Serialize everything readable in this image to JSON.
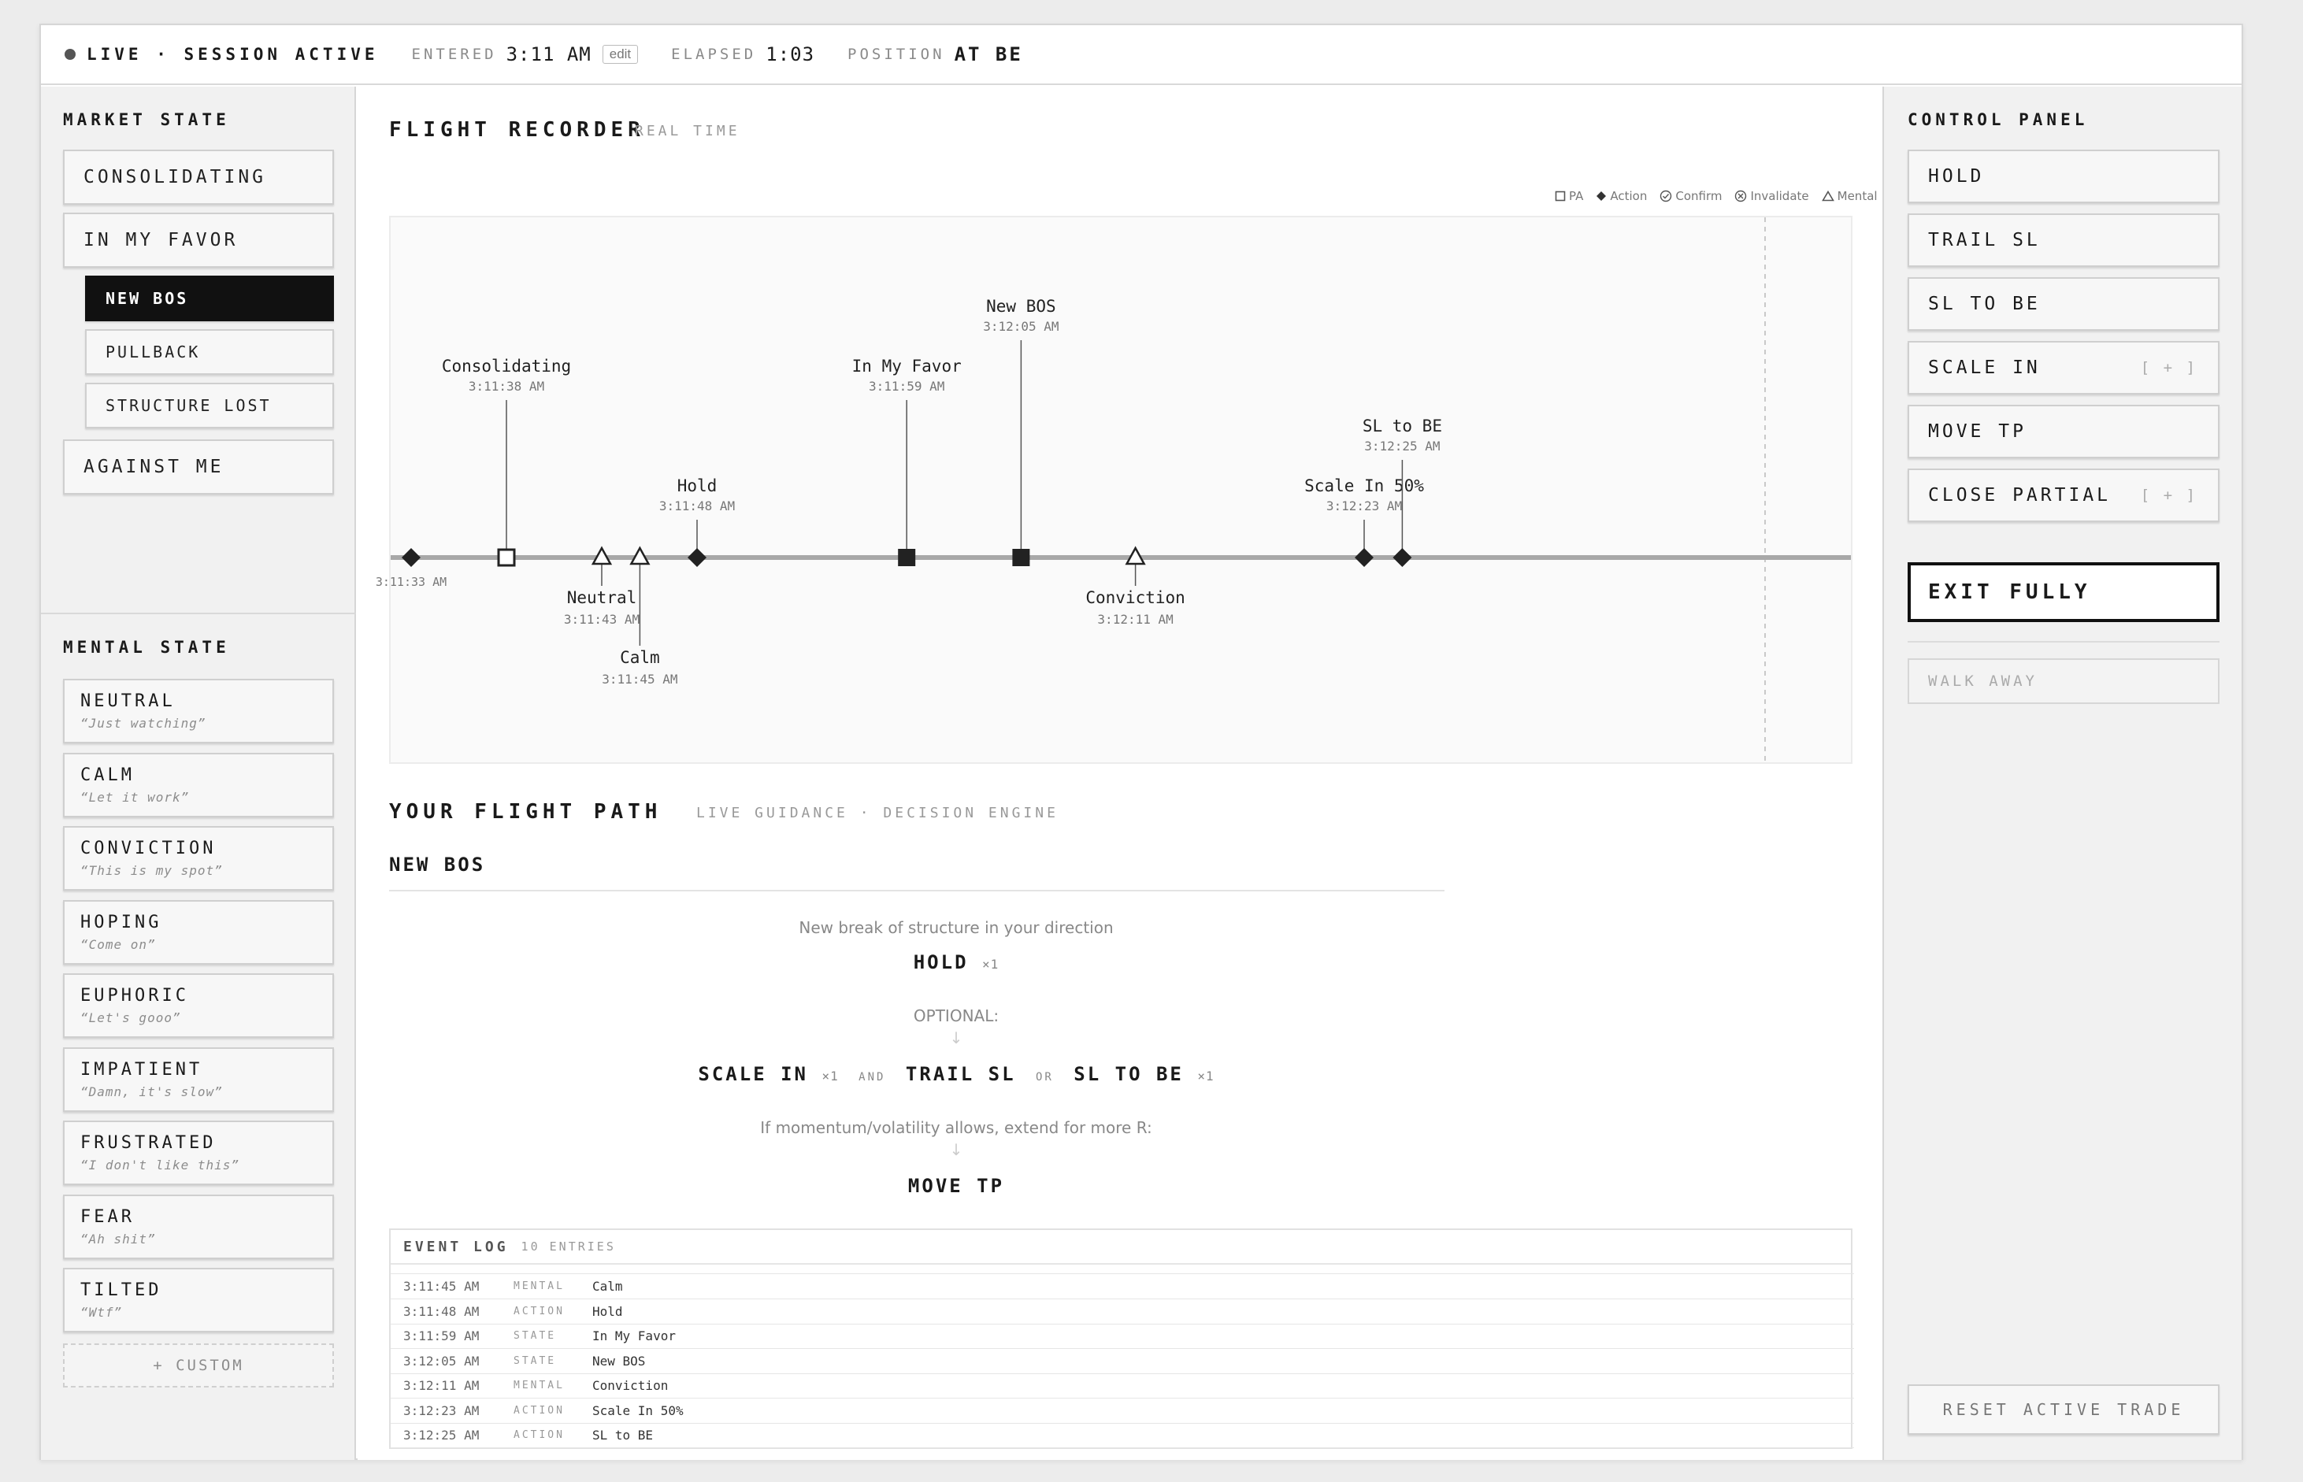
{
  "topbar": {
    "status": "LIVE · SESSION ACTIVE",
    "entered_label": "ENTERED",
    "entered_value": "3:11 AM",
    "edit_label": "edit",
    "elapsed_label": "ELAPSED",
    "elapsed_value": "1:03",
    "position_label": "POSITION",
    "position_value": "AT BE"
  },
  "market_state": {
    "title": "MARKET STATE",
    "items": [
      "CONSOLIDATING",
      "IN MY FAVOR",
      "AGAINST ME"
    ],
    "sub_items": [
      "NEW BOS",
      "PULLBACK",
      "STRUCTURE LOST"
    ],
    "active": "NEW BOS"
  },
  "mental_state": {
    "title": "MENTAL STATE",
    "items": [
      {
        "label": "NEUTRAL",
        "quote": "“Just watching”"
      },
      {
        "label": "CALM",
        "quote": "“Let it work”"
      },
      {
        "label": "CONVICTION",
        "quote": "“This is my spot”"
      },
      {
        "label": "HOPING",
        "quote": "“Come on”"
      },
      {
        "label": "EUPHORIC",
        "quote": "“Let's gooo”"
      },
      {
        "label": "IMPATIENT",
        "quote": "“Damn, it's slow”"
      },
      {
        "label": "FRUSTRATED",
        "quote": "“I don't like this”"
      },
      {
        "label": "FEAR",
        "quote": "“Ah shit”"
      },
      {
        "label": "TILTED",
        "quote": "“Wtf”"
      }
    ],
    "custom_label": "+ CUSTOM"
  },
  "control_panel": {
    "title": "CONTROL PANEL",
    "buttons": [
      {
        "label": "HOLD",
        "extra": ""
      },
      {
        "label": "TRAIL SL",
        "extra": ""
      },
      {
        "label": "SL TO BE",
        "extra": ""
      },
      {
        "label": "SCALE IN",
        "extra": "[ + ]"
      },
      {
        "label": "MOVE TP",
        "extra": ""
      },
      {
        "label": "CLOSE PARTIAL",
        "extra": "[ + ]"
      }
    ],
    "exit_label": "EXIT FULLY",
    "walk_label": "WALK AWAY",
    "reset_label": "RESET ACTIVE TRADE"
  },
  "recorder": {
    "title": "FLIGHT RECORDER",
    "subtitle": "REAL TIME",
    "legend": [
      "PA",
      "Action",
      "Confirm",
      "Invalidate",
      "Mental"
    ]
  },
  "chart_data": {
    "type": "timeline",
    "events": [
      {
        "t": "3:11:33 AM",
        "kind": "action",
        "label": "",
        "level": 0,
        "dir": "below",
        "lean": 0
      },
      {
        "t": "3:11:38 AM",
        "kind": "pa",
        "label": "Consolidating",
        "level": 3,
        "dir": "above",
        "lean": 0
      },
      {
        "t": "3:11:43 AM",
        "kind": "mental",
        "label": "Neutral",
        "level": 1,
        "dir": "below",
        "lean": 0
      },
      {
        "t": "3:11:45 AM",
        "kind": "mental",
        "label": "Calm",
        "level": 2,
        "dir": "below",
        "lean": 0
      },
      {
        "t": "3:11:48 AM",
        "kind": "action",
        "label": "Hold",
        "level": 1,
        "dir": "above",
        "lean": 0
      },
      {
        "t": "3:11:59 AM",
        "kind": "state",
        "label": "In My Favor",
        "level": 3,
        "dir": "above",
        "lean": 0
      },
      {
        "t": "3:12:05 AM",
        "kind": "state",
        "label": "New BOS",
        "level": 4,
        "dir": "above",
        "lean": 0
      },
      {
        "t": "3:12:11 AM",
        "kind": "mental",
        "label": "Conviction",
        "level": 1,
        "dir": "below",
        "lean": 0
      },
      {
        "t": "3:12:23 AM",
        "kind": "action",
        "label": "Scale In 50%",
        "level": 1,
        "dir": "above",
        "lean": 0
      },
      {
        "t": "3:12:25 AM",
        "kind": "action",
        "label": "SL to BE",
        "level": 2,
        "dir": "above",
        "lean": 0
      }
    ]
  },
  "flight_path": {
    "title": "YOUR FLIGHT PATH",
    "subtitle": "LIVE GUIDANCE · DECISION ENGINE",
    "state": "NEW BOS",
    "description": "New break of structure in your direction",
    "primary": "HOLD",
    "primary_count": "×1",
    "optional_label": "OPTIONAL:",
    "opt_a": "SCALE IN",
    "opt_a_count": "×1",
    "and_label": "AND",
    "opt_b": "TRAIL SL",
    "or_label": "OR",
    "opt_c": "SL TO BE",
    "opt_c_count": "×1",
    "extend_text": "If momentum/volatility allows, extend for more R:",
    "extend_action": "MOVE TP",
    "arrow": "↓"
  },
  "event_log": {
    "title": "EVENT LOG",
    "count": "10 ENTRIES",
    "rows": [
      {
        "time": "3:11:45 AM",
        "type": "MENTAL",
        "event": "Calm"
      },
      {
        "time": "3:11:48 AM",
        "type": "ACTION",
        "event": "Hold"
      },
      {
        "time": "3:11:59 AM",
        "type": "STATE",
        "event": "In My Favor"
      },
      {
        "time": "3:12:05 AM",
        "type": "STATE",
        "event": "New BOS"
      },
      {
        "time": "3:12:11 AM",
        "type": "MENTAL",
        "event": "Conviction"
      },
      {
        "time": "3:12:23 AM",
        "type": "ACTION",
        "event": "Scale In 50%"
      },
      {
        "time": "3:12:25 AM",
        "type": "ACTION",
        "event": "SL to BE"
      }
    ]
  }
}
